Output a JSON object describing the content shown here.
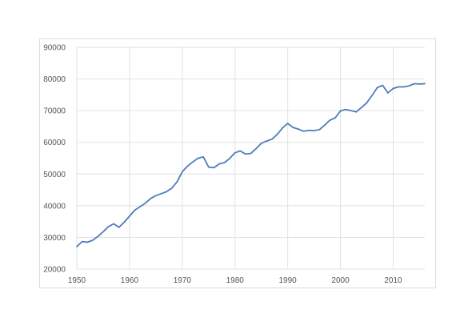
{
  "chart_data": {
    "type": "line",
    "title": "",
    "xlabel": "",
    "ylabel": "",
    "xlim": [
      1950,
      2016
    ],
    "ylim": [
      20000,
      90000
    ],
    "xticks": [
      1950,
      1960,
      1970,
      1980,
      1990,
      2000,
      2010
    ],
    "yticks": [
      20000,
      30000,
      40000,
      50000,
      60000,
      70000,
      80000,
      90000
    ],
    "grid": true,
    "legend": "none",
    "color": "#4f7cba",
    "series": [
      {
        "x": [
          1950,
          1951,
          1952,
          1953,
          1954,
          1955,
          1956,
          1957,
          1958,
          1959,
          1960,
          1961,
          1962,
          1963,
          1964,
          1965,
          1966,
          1967,
          1968,
          1969,
          1970,
          1971,
          1972,
          1973,
          1974,
          1975,
          1976,
          1977,
          1978,
          1979,
          1980,
          1981,
          1982,
          1983,
          1984,
          1985,
          1986,
          1987,
          1988,
          1989,
          1990,
          1991,
          1992,
          1993,
          1994,
          1995,
          1996,
          1997,
          1998,
          1999,
          2000,
          2001,
          2002,
          2003,
          2004,
          2005,
          2006,
          2007,
          2008,
          2009,
          2010,
          2011,
          2012,
          2013,
          2014,
          2015,
          2016
        ],
        "values": [
          27100,
          28700,
          28500,
          29100,
          30300,
          31800,
          33400,
          34300,
          33200,
          34800,
          36700,
          38600,
          39700,
          40800,
          42300,
          43200,
          43800,
          44400,
          45500,
          47500,
          50700,
          52500,
          53800,
          55000,
          55400,
          52200,
          52000,
          53200,
          53600,
          54900,
          56700,
          57300,
          56300,
          56500,
          58000,
          59700,
          60400,
          61000,
          62500,
          64500,
          66000,
          64700,
          64200,
          63500,
          63800,
          63700,
          64000,
          65400,
          67000,
          67700,
          69900,
          70400,
          70000,
          69600,
          71000,
          72500,
          74800,
          77300,
          78000,
          75600,
          77000,
          77500,
          77500,
          77800,
          78500,
          78400,
          78500
        ]
      }
    ]
  }
}
